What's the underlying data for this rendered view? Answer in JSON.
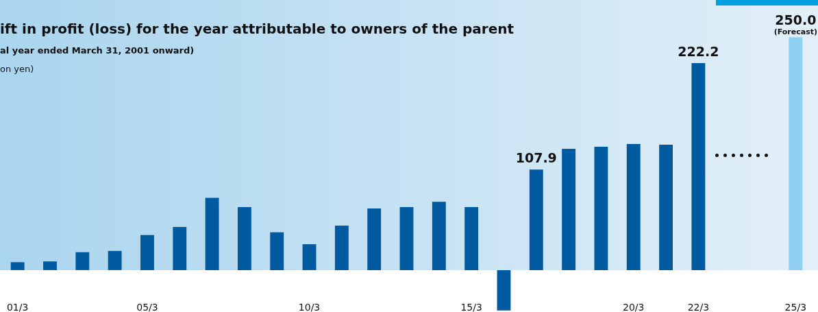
{
  "chart_data": {
    "type": "bar",
    "title": "ift in profit (loss) for the year attributable to owners of the parent",
    "subtitle": "al year ended March 31, 2001 onward)",
    "ylabel": "on yen)",
    "categories": [
      "01/3",
      null,
      null,
      null,
      "05/3",
      null,
      null,
      null,
      null,
      "10/3",
      null,
      null,
      null,
      null,
      "15/3",
      null,
      null,
      null,
      null,
      "20/3",
      null,
      "22/3",
      null,
      null,
      "25/3"
    ],
    "values": [
      8.5,
      9.3,
      19.2,
      20.6,
      37.7,
      46.3,
      77.6,
      67.6,
      40.6,
      27.8,
      47.7,
      66.2,
      67.6,
      73.3,
      67.6,
      -43.4,
      107.9,
      130.3,
      132.4,
      135.3,
      134.6,
      222.2,
      null,
      null,
      250.0
    ],
    "colors": [
      "#005aa0",
      "#005aa0",
      "#005aa0",
      "#005aa0",
      "#005aa0",
      "#005aa0",
      "#005aa0",
      "#005aa0",
      "#005aa0",
      "#005aa0",
      "#005aa0",
      "#005aa0",
      "#005aa0",
      "#005aa0",
      "#005aa0",
      "#005aa0",
      "#005aa0",
      "#005aa0",
      "#005aa0",
      "#005aa0",
      "#005aa0",
      "#005aa0",
      "#005aa0",
      "#005aa0",
      "#8fd0f0"
    ],
    "value_labels": [
      null,
      null,
      null,
      null,
      null,
      null,
      null,
      null,
      null,
      null,
      null,
      null,
      null,
      null,
      null,
      null,
      "107.9",
      null,
      null,
      null,
      null,
      "222.2",
      null,
      null,
      "250.0"
    ],
    "annotations": [
      {
        "text": "(Forecast)",
        "x": "25/3",
        "y": 250.0
      }
    ],
    "ylim": [
      -45,
      290
    ],
    "tick_labels": "x"
  }
}
